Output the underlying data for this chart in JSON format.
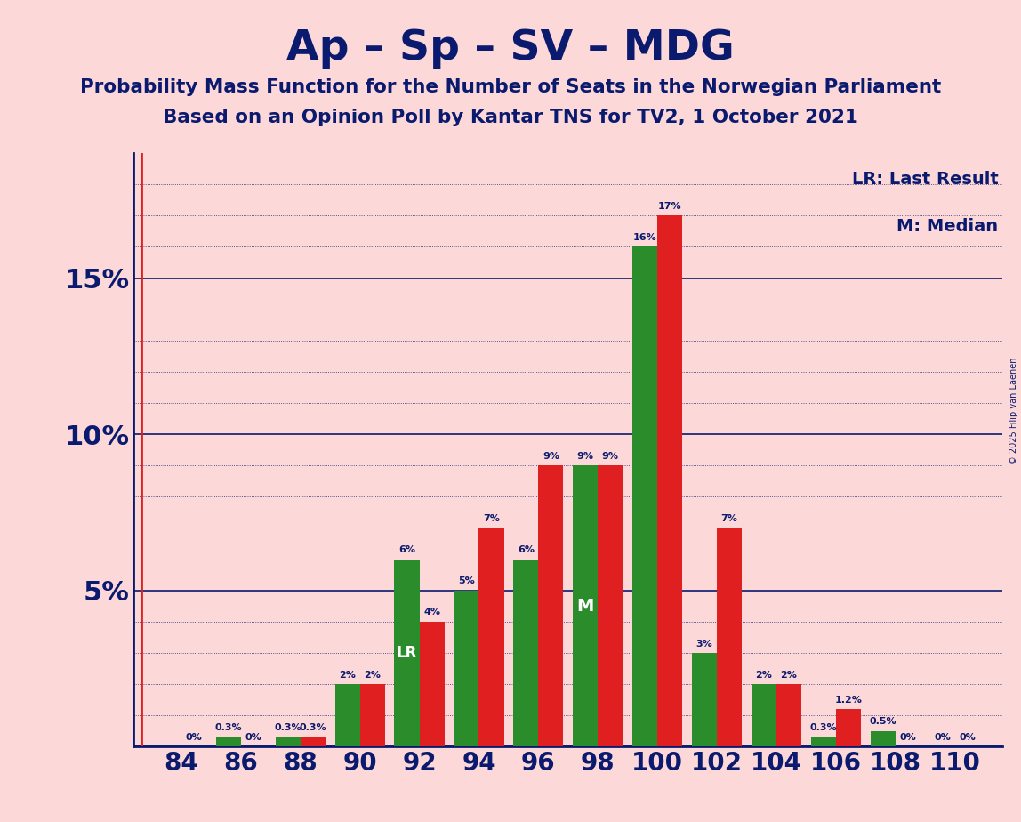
{
  "title": "Ap – Sp – SV – MDG",
  "subtitle1": "Probability Mass Function for the Number of Seats in the Norwegian Parliament",
  "subtitle2": "Based on an Opinion Poll by Kantar TNS for TV2, 1 October 2021",
  "copyright": "© 2025 Filip van Laenen",
  "legend_lr": "LR: Last Result",
  "legend_m": "M: Median",
  "seats": [
    84,
    86,
    88,
    90,
    92,
    94,
    96,
    98,
    100,
    102,
    104,
    106,
    108,
    110
  ],
  "red_values": [
    0.0,
    0.0,
    0.3,
    2.0,
    4.0,
    7.0,
    9.0,
    9.0,
    17.0,
    7.0,
    2.0,
    1.2,
    0.0,
    0.0
  ],
  "green_values": [
    0.0,
    0.3,
    0.3,
    2.0,
    6.0,
    5.0,
    6.0,
    9.0,
    16.0,
    3.0,
    2.0,
    0.3,
    0.5,
    0.0
  ],
  "red_labels": [
    "0%",
    "0%",
    "0.3%",
    "2%",
    "4%",
    "7%",
    "9%",
    "9%",
    "17%",
    "7%",
    "2%",
    "1.2%",
    "0%",
    "0%"
  ],
  "green_labels": [
    "",
    "0.3%",
    "0.3%",
    "2%",
    "6%",
    "5%",
    "6%",
    "9%",
    "16%",
    "3%",
    "2%",
    "0.3%",
    "0.5%",
    "0%"
  ],
  "lr_label": "LR",
  "median_label": "M",
  "lr_label_seat_index": 4,
  "median_label_seat_index": 7,
  "red_color": "#e02020",
  "green_color": "#2a8c2a",
  "background_color": "#fdd8d8",
  "title_color": "#0a1a6e",
  "axis_color": "#0a1a6e",
  "grid_color": "#0a1a6e",
  "vline_color": "#e02020",
  "ylim": [
    0,
    19
  ],
  "ytick_vals": [
    0,
    5,
    10,
    15
  ],
  "ytick_labels": [
    "",
    "5%",
    "10%",
    "15%"
  ]
}
